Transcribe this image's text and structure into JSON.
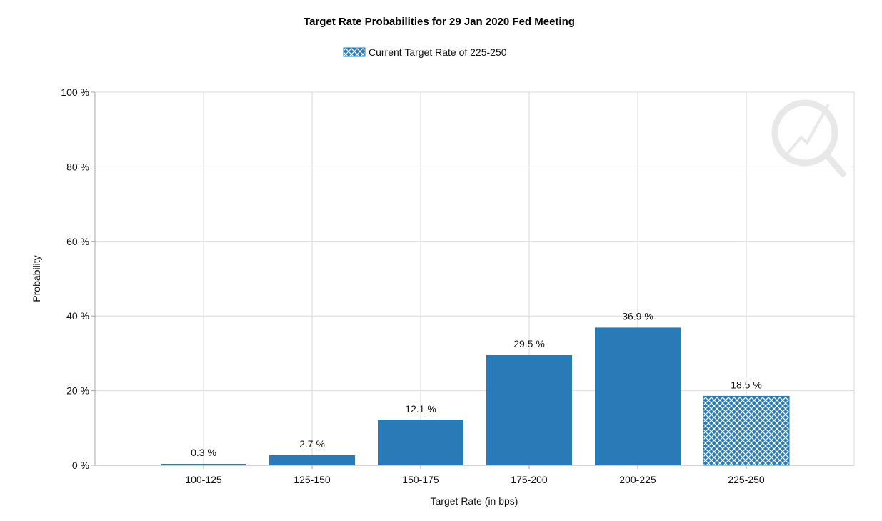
{
  "chart_data": {
    "type": "bar",
    "title": "Target Rate Probabilities for 29 Jan 2020 Fed Meeting",
    "legend": {
      "label": "Current Target Rate of 225-250",
      "placement": "top-center"
    },
    "xlabel": "Target Rate (in bps)",
    "ylabel": "Probability",
    "ylim": [
      0,
      100
    ],
    "y_ticks": [
      "0 %",
      "20 %",
      "40 %",
      "60 %",
      "80 %",
      "100 %"
    ],
    "y_tick_values": [
      0,
      20,
      40,
      60,
      80,
      100
    ],
    "categories": [
      "100-125",
      "125-150",
      "150-175",
      "175-200",
      "200-225",
      "225-250"
    ],
    "values": [
      0.3,
      2.7,
      12.1,
      29.5,
      36.9,
      18.5
    ],
    "data_labels": [
      "0.3 %",
      "2.7 %",
      "12.1 %",
      "29.5 %",
      "36.9 %",
      "18.5 %"
    ],
    "highlighted_category": "225-250",
    "grid": true,
    "colors": {
      "bar": "#2b7ab8",
      "grid": "#d9d9d9",
      "axis": "#a6a6a6"
    }
  }
}
